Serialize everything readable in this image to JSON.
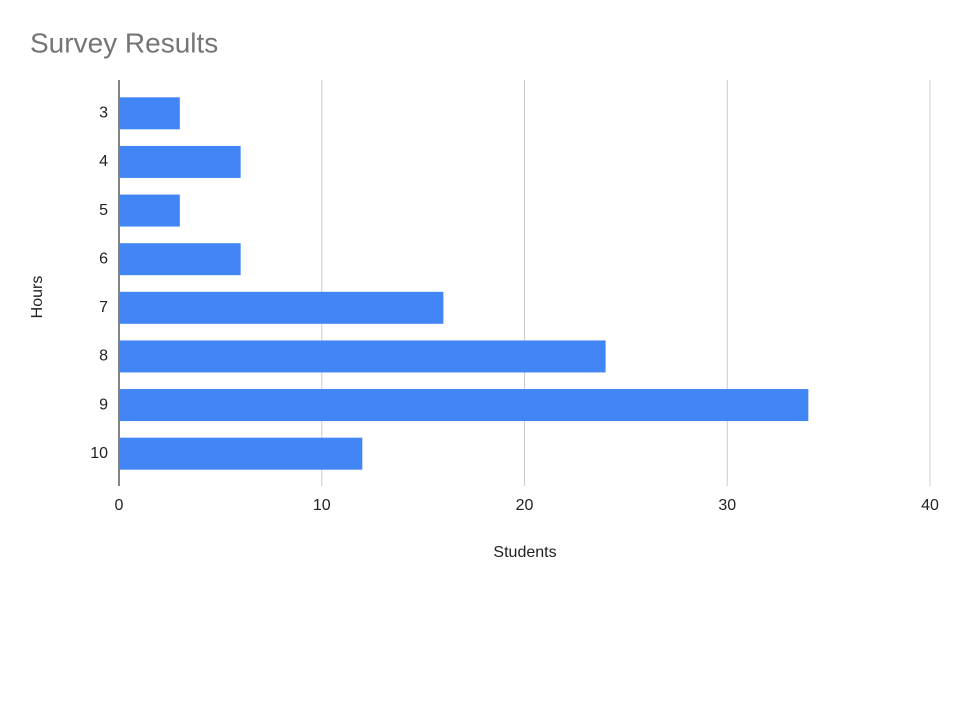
{
  "chart_data": {
    "type": "bar",
    "orientation": "horizontal",
    "title": "Survey Results",
    "x_label": "Students",
    "y_label": "Hours",
    "categories": [
      "3",
      "4",
      "5",
      "6",
      "7",
      "8",
      "9",
      "10"
    ],
    "values": [
      3,
      6,
      3,
      6,
      16,
      24,
      34,
      12
    ],
    "color": "#4285f4",
    "xlim": [
      0,
      40
    ],
    "xticks": [
      0,
      10,
      20,
      30,
      40
    ],
    "grid": true
  }
}
